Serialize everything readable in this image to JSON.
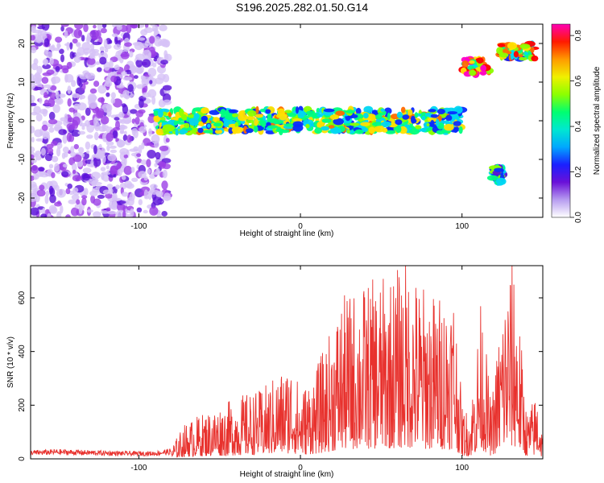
{
  "title": "S196.2025.282.01.50.G14",
  "colors": {
    "snr_line": "#e8322e",
    "colormap": [
      "#ffffff",
      "#d9c4f5",
      "#9b3ee6",
      "#5a10d8",
      "#0a2bff",
      "#00d7f2",
      "#00ff80",
      "#8cff00",
      "#ffe000",
      "#ff6a00",
      "#ff0000",
      "#ff00c8"
    ]
  },
  "chart_data": [
    {
      "type": "heatmap",
      "xlabel": "Height of straight line (km)",
      "ylabel": "Frequency (Hz)",
      "xlim": [
        -167,
        150
      ],
      "ylim": [
        -25,
        25
      ],
      "xticks": [
        -100,
        0,
        100
      ],
      "yticks": [
        -20,
        -10,
        0,
        10,
        20
      ],
      "colorbar": {
        "label": "Normalized spectral amplitude",
        "range": [
          0,
          0.85
        ],
        "ticks": [
          "0.0",
          "0.2",
          "0.4",
          "0.6",
          "0.8"
        ]
      },
      "features": [
        {
          "x": [
            -167,
            -82
          ],
          "y": [
            -25,
            25
          ],
          "description_level": 0.12
        },
        {
          "x": [
            -90,
            100
          ],
          "y": [
            -3,
            3
          ],
          "description_level": 0.45
        },
        {
          "x": [
            100,
            117
          ],
          "y": [
            12,
            16
          ],
          "description_level": 0.65
        },
        {
          "x": [
            119,
            125
          ],
          "y": [
            -16,
            -12
          ],
          "description_level": 0.35
        },
        {
          "x": [
            123,
            145
          ],
          "y": [
            16,
            20
          ],
          "description_level": 0.55
        }
      ]
    },
    {
      "type": "line",
      "xlabel": "Height of straight line (km)",
      "ylabel": "SNR (10 * v/v)",
      "xlim": [
        -167,
        150
      ],
      "ylim": [
        0,
        720
      ],
      "xticks": [
        -100,
        0,
        100
      ],
      "yticks": [
        0,
        200,
        400,
        600
      ],
      "series": [
        {
          "x": [
            -167,
            -150,
            -130,
            -110,
            -90,
            -80,
            -72,
            -65,
            -55,
            -45,
            -35,
            -25,
            -15,
            -5,
            0,
            10,
            18,
            25,
            35,
            45,
            55,
            65,
            75,
            85,
            95,
            100,
            105,
            112,
            118,
            125,
            132,
            140,
            147,
            150
          ],
          "values": [
            25,
            28,
            25,
            22,
            22,
            30,
            90,
            110,
            130,
            150,
            170,
            180,
            220,
            260,
            180,
            240,
            330,
            420,
            450,
            470,
            480,
            520,
            460,
            430,
            470,
            140,
            120,
            430,
            140,
            420,
            560,
            120,
            180,
            60
          ]
        }
      ]
    }
  ]
}
